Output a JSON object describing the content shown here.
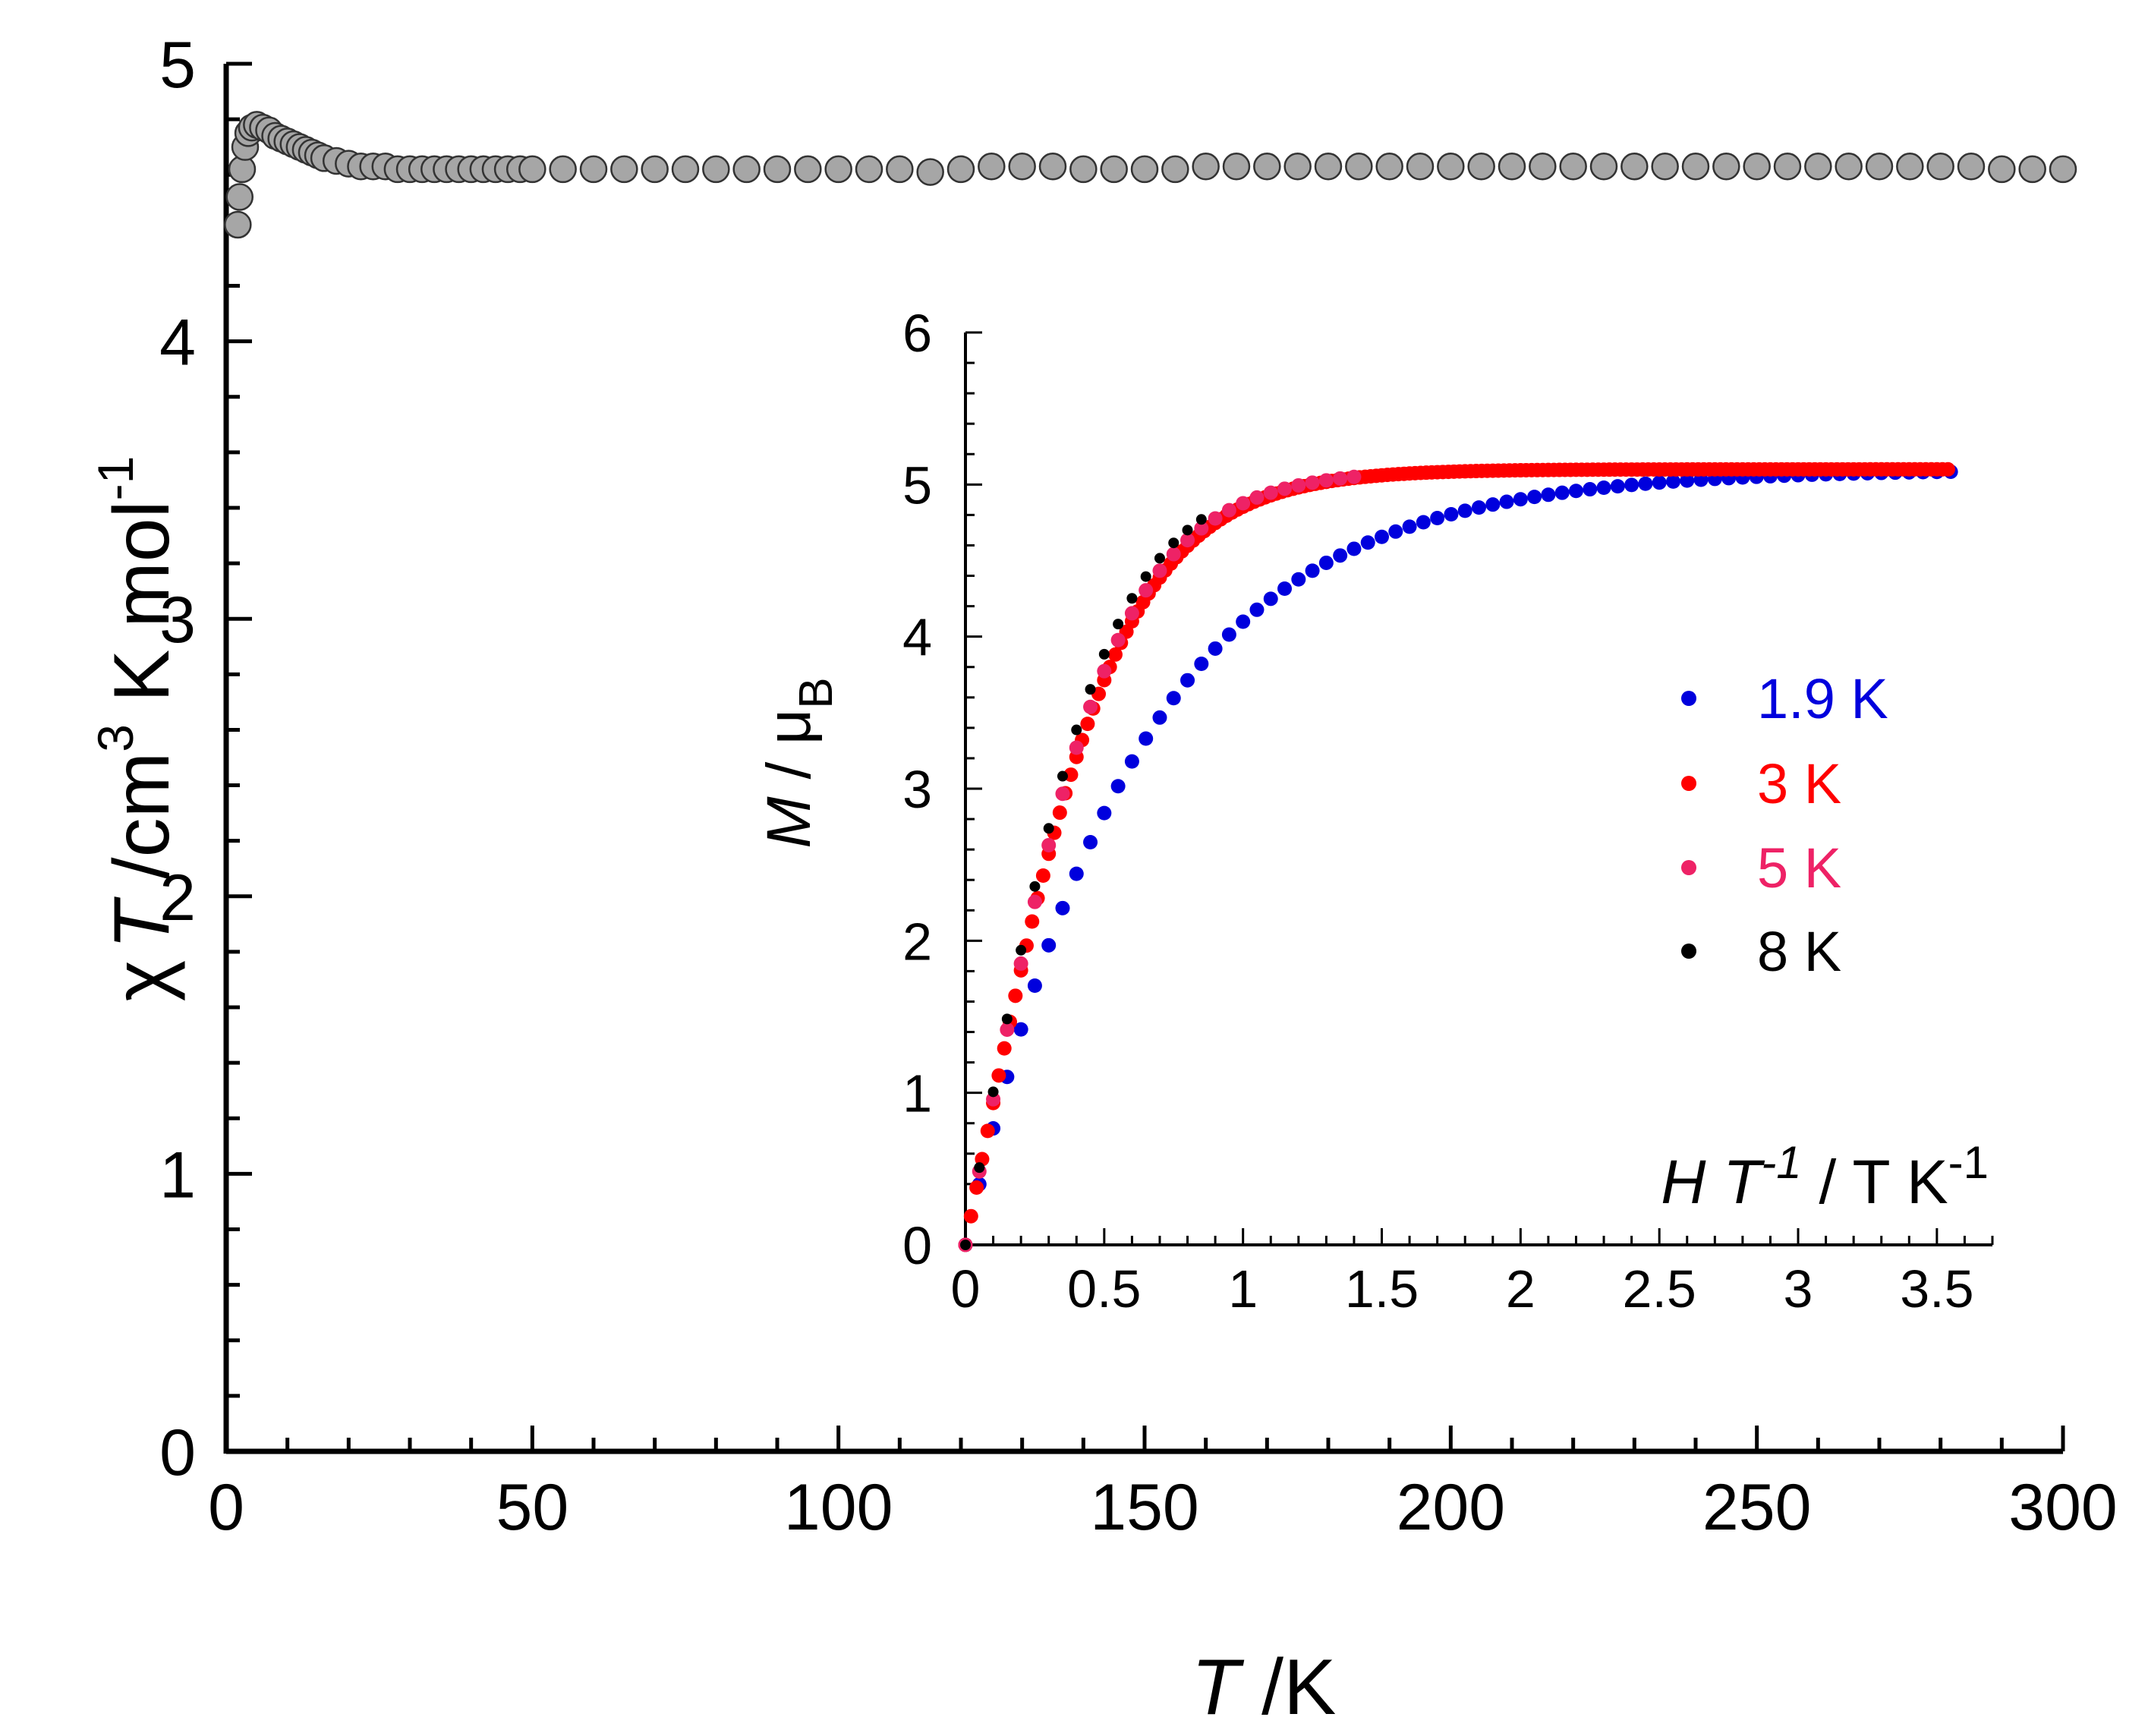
{
  "chart_data": [
    {
      "type": "scatter",
      "name": "main",
      "title": "",
      "ylabel": {
        "symbol": "χ",
        "italic": "T",
        "unit": " /cm",
        "sup1": "3",
        "rest": " K mol",
        "sup2": "-1"
      },
      "xlabel": {
        "italic": "T",
        "unit": " /K"
      },
      "xlim": [
        0,
        300
      ],
      "ylim": [
        0,
        5
      ],
      "xticks": [
        0,
        50,
        100,
        150,
        200,
        250,
        300
      ],
      "yticks": [
        0,
        1,
        2,
        3,
        4,
        5
      ],
      "x_tick_labels": [
        "0",
        "50",
        "100",
        "150",
        "200",
        "250",
        "300"
      ],
      "y_tick_labels": [
        "0",
        "1",
        "2",
        "3",
        "4",
        "5"
      ],
      "series": [
        {
          "name": "chiT",
          "color": "#a6a6a6",
          "edge": "#333333",
          "points": [
            [
              1.9,
              4.42
            ],
            [
              2.2,
              4.52
            ],
            [
              2.6,
              4.62
            ],
            [
              3.1,
              4.7
            ],
            [
              3.6,
              4.75
            ],
            [
              4.2,
              4.77
            ],
            [
              5.0,
              4.78
            ],
            [
              6.0,
              4.77
            ],
            [
              7.0,
              4.76
            ],
            [
              8.0,
              4.74
            ],
            [
              9.0,
              4.73
            ],
            [
              10,
              4.72
            ],
            [
              11,
              4.71
            ],
            [
              12,
              4.7
            ],
            [
              13,
              4.69
            ],
            [
              14,
              4.68
            ],
            [
              15,
              4.67
            ],
            [
              16,
              4.66
            ],
            [
              18,
              4.65
            ],
            [
              20,
              4.64
            ],
            [
              22,
              4.63
            ],
            [
              24,
              4.63
            ],
            [
              26,
              4.63
            ],
            [
              28,
              4.62
            ],
            [
              30,
              4.62
            ],
            [
              32,
              4.62
            ],
            [
              34,
              4.62
            ],
            [
              36,
              4.62
            ],
            [
              38,
              4.62
            ],
            [
              40,
              4.62
            ],
            [
              42,
              4.62
            ],
            [
              44,
              4.62
            ],
            [
              46,
              4.62
            ],
            [
              48,
              4.62
            ],
            [
              50,
              4.62
            ],
            [
              55,
              4.62
            ],
            [
              60,
              4.62
            ],
            [
              65,
              4.62
            ],
            [
              70,
              4.62
            ],
            [
              75,
              4.62
            ],
            [
              80,
              4.62
            ],
            [
              85,
              4.62
            ],
            [
              90,
              4.62
            ],
            [
              95,
              4.62
            ],
            [
              100,
              4.62
            ],
            [
              105,
              4.62
            ],
            [
              110,
              4.62
            ],
            [
              115,
              4.61
            ],
            [
              120,
              4.62
            ],
            [
              125,
              4.63
            ],
            [
              130,
              4.63
            ],
            [
              135,
              4.63
            ],
            [
              140,
              4.62
            ],
            [
              145,
              4.62
            ],
            [
              150,
              4.62
            ],
            [
              155,
              4.62
            ],
            [
              160,
              4.63
            ],
            [
              165,
              4.63
            ],
            [
              170,
              4.63
            ],
            [
              175,
              4.63
            ],
            [
              180,
              4.63
            ],
            [
              185,
              4.63
            ],
            [
              190,
              4.63
            ],
            [
              195,
              4.63
            ],
            [
              200,
              4.63
            ],
            [
              205,
              4.63
            ],
            [
              210,
              4.63
            ],
            [
              215,
              4.63
            ],
            [
              220,
              4.63
            ],
            [
              225,
              4.63
            ],
            [
              230,
              4.63
            ],
            [
              235,
              4.63
            ],
            [
              240,
              4.63
            ],
            [
              245,
              4.63
            ],
            [
              250,
              4.63
            ],
            [
              255,
              4.63
            ],
            [
              260,
              4.63
            ],
            [
              265,
              4.63
            ],
            [
              270,
              4.63
            ],
            [
              275,
              4.63
            ],
            [
              280,
              4.63
            ],
            [
              285,
              4.63
            ],
            [
              290,
              4.62
            ],
            [
              295,
              4.62
            ],
            [
              300,
              4.62
            ]
          ]
        }
      ]
    },
    {
      "type": "scatter",
      "name": "inset",
      "title": "",
      "ylabel": {
        "italic": "M",
        "unit": " / μ",
        "sub": "B"
      },
      "xlabel": {
        "italic1": "H T",
        "sup1": "-1",
        "rest": " / T K",
        "sup2": "-1"
      },
      "xlim": [
        0,
        3.7
      ],
      "ylim": [
        0,
        6
      ],
      "xticks": [
        0,
        0.5,
        1,
        1.5,
        2,
        2.5,
        3,
        3.5
      ],
      "yticks": [
        0,
        1,
        2,
        3,
        4,
        5,
        6
      ],
      "x_tick_labels": [
        "0",
        "0.5",
        "1",
        "1.5",
        "2",
        "2.5",
        "3",
        "3.5"
      ],
      "y_tick_labels": [
        "0",
        "1",
        "2",
        "3",
        "4",
        "5",
        "6"
      ],
      "series": [
        {
          "name": "8 K",
          "color": "#000000",
          "Ms": 5.1,
          "k": 2.0,
          "hmax": 0.875
        },
        {
          "name": "5 K",
          "color": "#ee2266",
          "Ms": 5.1,
          "k": 1.9,
          "hmax": 1.4
        },
        {
          "name": "3 K",
          "color": "#ff0000",
          "Ms": 5.1,
          "k": 1.85,
          "hmax": 3.55
        },
        {
          "name": "1.9 K",
          "color": "#0000dd",
          "Ms": 5.1,
          "k": 1.55,
          "hmax": 3.55
        }
      ],
      "legend": {
        "placement": "right",
        "entries": [
          {
            "label": "1.9 K",
            "color": "#0000dd"
          },
          {
            "label": "3 K",
            "color": "#ff0000"
          },
          {
            "label": "5 K",
            "color": "#ee2266"
          },
          {
            "label": "8 K",
            "color": "#000000"
          }
        ]
      }
    }
  ]
}
